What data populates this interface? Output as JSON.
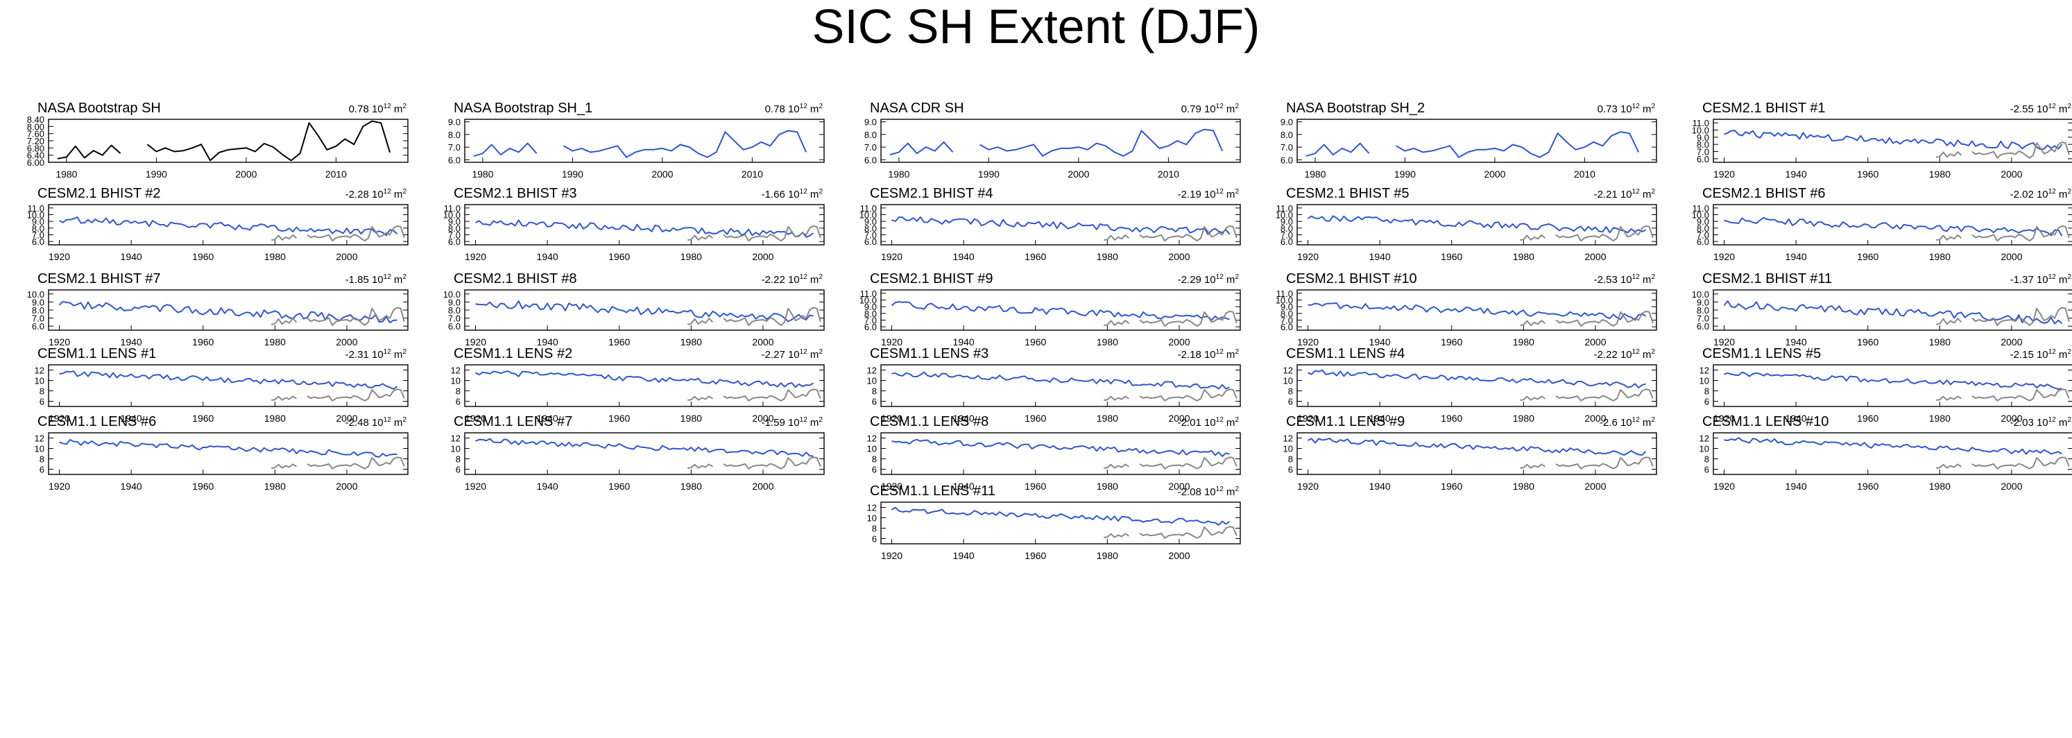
{
  "figure": {
    "title": "SIC SH Extent (DJF)"
  },
  "colors": {
    "model_line": "#3355cc",
    "obs_line": "#888888",
    "obs_main": "#000000",
    "axis": "#000000"
  },
  "chart_data": [
    {
      "type": "line",
      "title": "NASA Bootstrap SH",
      "trend": "0.78",
      "unit": "10^12 m^2",
      "x_range": [
        1978,
        2018
      ],
      "x_ticks": [
        1980,
        1990,
        2000,
        2010
      ],
      "ylim": [
        6.0,
        8.4
      ],
      "y_ticks": [
        "6.00",
        "6.40",
        "6.80",
        "7.20",
        "7.60",
        "8.00",
        "8.40"
      ],
      "series": [
        {
          "name": "NASA Bootstrap SH",
          "color": "#000000",
          "x": [
            1979,
            1980,
            1981,
            1982,
            1983,
            1984,
            1985,
            1986,
            1987,
            1988,
            1989,
            1990,
            1991,
            1992,
            1993,
            1994,
            1995,
            1996,
            1997,
            1998,
            1999,
            2000,
            2001,
            2002,
            2003,
            2004,
            2005,
            2006,
            2007,
            2008,
            2009,
            2010,
            2011,
            2012,
            2013,
            2014,
            2015,
            2016,
            2017
          ],
          "y": [
            6.2,
            6.3,
            6.9,
            6.25,
            6.65,
            6.4,
            6.95,
            6.5,
            null,
            null,
            7.0,
            6.6,
            6.8,
            6.6,
            6.65,
            6.8,
            7.0,
            6.1,
            6.55,
            6.7,
            6.75,
            6.8,
            6.6,
            7.05,
            6.85,
            6.45,
            6.1,
            6.5,
            8.2,
            7.5,
            6.7,
            6.9,
            7.3,
            7.0,
            8.0,
            8.3,
            8.2,
            6.55,
            null
          ]
        }
      ]
    },
    {
      "type": "line",
      "title": "NASA Bootstrap SH_1",
      "trend": "0.78",
      "unit": "10^12 m^2",
      "x_range": [
        1978,
        2018
      ],
      "x_ticks": [
        1980,
        1990,
        2000,
        2010
      ],
      "ylim": [
        5.8,
        9.2
      ],
      "y_ticks": [
        "6.0",
        "7.0",
        "8.0",
        "9.0"
      ],
      "series": [
        {
          "name": "NASA Bootstrap SH_1",
          "color": "#3355cc",
          "x": [
            1979,
            1980,
            1981,
            1982,
            1983,
            1984,
            1985,
            1986,
            1987,
            1988,
            1989,
            1990,
            1991,
            1992,
            1993,
            1994,
            1995,
            1996,
            1997,
            1998,
            1999,
            2000,
            2001,
            2002,
            2003,
            2004,
            2005,
            2006,
            2007,
            2008,
            2009,
            2010,
            2011,
            2012,
            2013,
            2014,
            2015,
            2016,
            2017
          ],
          "y": [
            6.3,
            6.5,
            7.2,
            6.4,
            6.9,
            6.6,
            7.3,
            6.5,
            null,
            null,
            7.1,
            6.7,
            6.9,
            6.6,
            6.7,
            6.9,
            7.1,
            6.2,
            6.6,
            6.8,
            6.8,
            6.9,
            6.7,
            7.2,
            7.0,
            6.5,
            6.2,
            6.6,
            8.2,
            7.5,
            6.8,
            7.0,
            7.4,
            7.1,
            8.0,
            8.3,
            8.2,
            6.6,
            null
          ]
        }
      ]
    },
    {
      "type": "line",
      "title": "NASA CDR SH",
      "trend": "0.79",
      "unit": "10^12 m^2",
      "x_range": [
        1978,
        2018
      ],
      "x_ticks": [
        1980,
        1990,
        2000,
        2010
      ],
      "ylim": [
        5.8,
        9.2
      ],
      "y_ticks": [
        "6.0",
        "7.0",
        "8.0",
        "9.0"
      ],
      "series": [
        {
          "name": "NASA CDR SH",
          "color": "#3355cc",
          "x": [
            1979,
            1980,
            1981,
            1982,
            1983,
            1984,
            1985,
            1986,
            1987,
            1988,
            1989,
            1990,
            1991,
            1992,
            1993,
            1994,
            1995,
            1996,
            1997,
            1998,
            1999,
            2000,
            2001,
            2002,
            2003,
            2004,
            2005,
            2006,
            2007,
            2008,
            2009,
            2010,
            2011,
            2012,
            2013,
            2014,
            2015,
            2016,
            2017
          ],
          "y": [
            6.4,
            6.6,
            7.3,
            6.5,
            7.0,
            6.7,
            7.4,
            6.6,
            null,
            null,
            7.2,
            6.8,
            7.0,
            6.7,
            6.8,
            7.0,
            7.2,
            6.3,
            6.7,
            6.9,
            6.9,
            7.0,
            6.8,
            7.3,
            7.1,
            6.6,
            6.3,
            6.7,
            8.3,
            7.6,
            6.9,
            7.1,
            7.5,
            7.2,
            8.1,
            8.4,
            8.3,
            6.7,
            null
          ]
        }
      ]
    },
    {
      "type": "line",
      "title": "NASA Bootstrap SH_2",
      "trend": "0.73",
      "unit": "10^12 m^2",
      "x_range": [
        1978,
        2018
      ],
      "x_ticks": [
        1980,
        1990,
        2000,
        2010
      ],
      "ylim": [
        5.8,
        9.2
      ],
      "y_ticks": [
        "6.0",
        "7.0",
        "8.0",
        "9.0"
      ],
      "series": [
        {
          "name": "NASA Bootstrap SH_2",
          "color": "#3355cc",
          "x": [
            1979,
            1980,
            1981,
            1982,
            1983,
            1984,
            1985,
            1986,
            1987,
            1988,
            1989,
            1990,
            1991,
            1992,
            1993,
            1994,
            1995,
            1996,
            1997,
            1998,
            1999,
            2000,
            2001,
            2002,
            2003,
            2004,
            2005,
            2006,
            2007,
            2008,
            2009,
            2010,
            2011,
            2012,
            2013,
            2014,
            2015,
            2016,
            2017
          ],
          "y": [
            6.3,
            6.5,
            7.2,
            6.4,
            6.9,
            6.6,
            7.3,
            6.5,
            null,
            null,
            7.1,
            6.7,
            6.9,
            6.6,
            6.7,
            6.9,
            7.1,
            6.2,
            6.6,
            6.8,
            6.8,
            6.9,
            6.7,
            7.2,
            7.0,
            6.5,
            6.2,
            6.6,
            8.1,
            7.4,
            6.8,
            7.0,
            7.4,
            7.1,
            7.9,
            8.2,
            8.1,
            6.6,
            null
          ]
        }
      ]
    },
    {
      "type": "line",
      "title": "CESM2.1 BHIST #1",
      "trend": "-2.55",
      "unit": "10^12 m^2",
      "x_range": [
        1917,
        2017
      ],
      "x_ticks": [
        1920,
        1940,
        1960,
        1980,
        2000
      ],
      "ylim": [
        5.5,
        11.5
      ],
      "y_ticks": [
        "6.0",
        "7.0",
        "8.0",
        "9.0",
        "10.0",
        "11.0"
      ],
      "series": []
    },
    {
      "type": "line",
      "title": "CESM2.1 BHIST #2",
      "trend": "-2.28",
      "unit": "10^12 m^2",
      "x_range": [
        1917,
        2017
      ],
      "x_ticks": [
        1920,
        1940,
        1960,
        1980,
        2000
      ],
      "ylim": [
        5.5,
        11.5
      ],
      "y_ticks": [
        "6.0",
        "7.0",
        "8.0",
        "9.0",
        "10.0",
        "11.0"
      ],
      "series": []
    },
    {
      "type": "line",
      "title": "CESM2.1 BHIST #3",
      "trend": "-1.66",
      "unit": "10^12 m^2",
      "x_range": [
        1917,
        2017
      ],
      "x_ticks": [
        1920,
        1940,
        1960,
        1980,
        2000
      ],
      "ylim": [
        5.5,
        11.5
      ],
      "y_ticks": [
        "6.0",
        "7.0",
        "8.0",
        "9.0",
        "10.0",
        "11.0"
      ],
      "series": []
    },
    {
      "type": "line",
      "title": "CESM2.1 BHIST #4",
      "trend": "-2.19",
      "unit": "10^12 m^2",
      "x_range": [
        1917,
        2017
      ],
      "x_ticks": [
        1920,
        1940,
        1960,
        1980,
        2000
      ],
      "ylim": [
        5.5,
        11.5
      ],
      "y_ticks": [
        "6.0",
        "7.0",
        "8.0",
        "9.0",
        "10.0",
        "11.0"
      ],
      "series": []
    },
    {
      "type": "line",
      "title": "CESM2.1 BHIST #5",
      "trend": "-2.21",
      "unit": "10^12 m^2",
      "x_range": [
        1917,
        2017
      ],
      "x_ticks": [
        1920,
        1940,
        1960,
        1980,
        2000
      ],
      "ylim": [
        5.5,
        11.5
      ],
      "y_ticks": [
        "6.0",
        "7.0",
        "8.0",
        "9.0",
        "10.0",
        "11.0"
      ],
      "series": []
    },
    {
      "type": "line",
      "title": "CESM2.1 BHIST #6",
      "trend": "-2.02",
      "unit": "10^12 m^2",
      "x_range": [
        1917,
        2017
      ],
      "x_ticks": [
        1920,
        1940,
        1960,
        1980,
        2000
      ],
      "ylim": [
        5.5,
        11.5
      ],
      "y_ticks": [
        "6.0",
        "7.0",
        "8.0",
        "9.0",
        "10.0",
        "11.0"
      ],
      "series": []
    },
    {
      "type": "line",
      "title": "CESM2.1 BHIST #7",
      "trend": "-1.85",
      "unit": "10^12 m^2",
      "x_range": [
        1917,
        2017
      ],
      "x_ticks": [
        1920,
        1940,
        1960,
        1980,
        2000
      ],
      "ylim": [
        5.5,
        10.5
      ],
      "y_ticks": [
        "6.0",
        "7.0",
        "8.0",
        "9.0",
        "10.0"
      ],
      "series": []
    },
    {
      "type": "line",
      "title": "CESM2.1 BHIST #8",
      "trend": "-2.22",
      "unit": "10^12 m^2",
      "x_range": [
        1917,
        2017
      ],
      "x_ticks": [
        1920,
        1940,
        1960,
        1980,
        2000
      ],
      "ylim": [
        5.5,
        10.5
      ],
      "y_ticks": [
        "6.0",
        "7.0",
        "8.0",
        "9.0",
        "10.0"
      ],
      "series": []
    },
    {
      "type": "line",
      "title": "CESM2.1 BHIST #9",
      "trend": "-2.29",
      "unit": "10^12 m^2",
      "x_range": [
        1917,
        2017
      ],
      "x_ticks": [
        1920,
        1940,
        1960,
        1980,
        2000
      ],
      "ylim": [
        5.5,
        11.5
      ],
      "y_ticks": [
        "6.0",
        "7.0",
        "8.0",
        "9.0",
        "10.0",
        "11.0"
      ],
      "series": []
    },
    {
      "type": "line",
      "title": "CESM2.1 BHIST #10",
      "trend": "-2.53",
      "unit": "10^12 m^2",
      "x_range": [
        1917,
        2017
      ],
      "x_ticks": [
        1920,
        1940,
        1960,
        1980,
        2000
      ],
      "ylim": [
        5.5,
        11.5
      ],
      "y_ticks": [
        "6.0",
        "7.0",
        "8.0",
        "9.0",
        "10.0",
        "11.0"
      ],
      "series": []
    },
    {
      "type": "line",
      "title": "CESM2.1 BHIST #11",
      "trend": "-1.37",
      "unit": "10^12 m^2",
      "x_range": [
        1917,
        2017
      ],
      "x_ticks": [
        1920,
        1940,
        1960,
        1980,
        2000
      ],
      "ylim": [
        5.5,
        10.5
      ],
      "y_ticks": [
        "6.0",
        "7.0",
        "8.0",
        "9.0",
        "10.0"
      ],
      "series": []
    },
    {
      "type": "line",
      "title": "CESM1.1 LENS #1",
      "trend": "-2.31",
      "unit": "10^12 m^2",
      "x_range": [
        1917,
        2017
      ],
      "x_ticks": [
        1920,
        1940,
        1960,
        1980,
        2000
      ],
      "ylim": [
        5,
        13
      ],
      "y_ticks": [
        "6",
        "8",
        "10",
        "12"
      ],
      "series": []
    },
    {
      "type": "line",
      "title": "CESM1.1 LENS #2",
      "trend": "-2.27",
      "unit": "10^12 m^2",
      "x_range": [
        1917,
        2017
      ],
      "x_ticks": [
        1920,
        1940,
        1960,
        1980,
        2000
      ],
      "ylim": [
        5,
        13
      ],
      "y_ticks": [
        "6",
        "8",
        "10",
        "12"
      ],
      "series": []
    },
    {
      "type": "line",
      "title": "CESM1.1 LENS #3",
      "trend": "-2.18",
      "unit": "10^12 m^2",
      "x_range": [
        1917,
        2017
      ],
      "x_ticks": [
        1920,
        1940,
        1960,
        1980,
        2000
      ],
      "ylim": [
        5,
        13
      ],
      "y_ticks": [
        "6",
        "8",
        "10",
        "12"
      ],
      "series": []
    },
    {
      "type": "line",
      "title": "CESM1.1 LENS #4",
      "trend": "-2.22",
      "unit": "10^12 m^2",
      "x_range": [
        1917,
        2017
      ],
      "x_ticks": [
        1920,
        1940,
        1960,
        1980,
        2000
      ],
      "ylim": [
        5,
        13
      ],
      "y_ticks": [
        "6",
        "8",
        "10",
        "12"
      ],
      "series": []
    },
    {
      "type": "line",
      "title": "CESM1.1 LENS #5",
      "trend": "-2.15",
      "unit": "10^12 m^2",
      "x_range": [
        1917,
        2017
      ],
      "x_ticks": [
        1920,
        1940,
        1960,
        1980,
        2000
      ],
      "ylim": [
        5,
        13
      ],
      "y_ticks": [
        "6",
        "8",
        "10",
        "12"
      ],
      "series": []
    },
    {
      "type": "line",
      "title": "CESM1.1 LENS #6",
      "trend": "-2.48",
      "unit": "10^12 m^2",
      "x_range": [
        1917,
        2017
      ],
      "x_ticks": [
        1920,
        1940,
        1960,
        1980,
        2000
      ],
      "ylim": [
        5,
        13
      ],
      "y_ticks": [
        "6",
        "8",
        "10",
        "12"
      ],
      "series": []
    },
    {
      "type": "line",
      "title": "CESM1.1 LENS #7",
      "trend": "-1.59",
      "unit": "10^12 m^2",
      "x_range": [
        1917,
        2017
      ],
      "x_ticks": [
        1920,
        1940,
        1960,
        1980,
        2000
      ],
      "ylim": [
        5,
        13
      ],
      "y_ticks": [
        "6",
        "8",
        "10",
        "12"
      ],
      "series": []
    },
    {
      "type": "line",
      "title": "CESM1.1 LENS #8",
      "trend": "-2.01",
      "unit": "10^12 m^2",
      "x_range": [
        1917,
        2017
      ],
      "x_ticks": [
        1920,
        1940,
        1960,
        1980,
        2000
      ],
      "ylim": [
        5,
        13
      ],
      "y_ticks": [
        "6",
        "8",
        "10",
        "12"
      ],
      "series": []
    },
    {
      "type": "line",
      "title": "CESM1.1 LENS #9",
      "trend": "-2.6",
      "unit": "10^12 m^2",
      "x_range": [
        1917,
        2017
      ],
      "x_ticks": [
        1920,
        1940,
        1960,
        1980,
        2000
      ],
      "ylim": [
        5,
        13
      ],
      "y_ticks": [
        "6",
        "8",
        "10",
        "12"
      ],
      "series": []
    },
    {
      "type": "line",
      "title": "CESM1.1 LENS #10",
      "trend": "-2.03",
      "unit": "10^12 m^2",
      "x_range": [
        1917,
        2017
      ],
      "x_ticks": [
        1920,
        1940,
        1960,
        1980,
        2000
      ],
      "ylim": [
        5,
        13
      ],
      "y_ticks": [
        "6",
        "8",
        "10",
        "12"
      ],
      "series": []
    },
    {
      "type": "line",
      "title": "CESM1.1 LENS #11",
      "trend": "-2.08",
      "unit": "10^12 m^2",
      "x_range": [
        1917,
        2017
      ],
      "x_ticks": [
        1920,
        1940,
        1960,
        1980,
        2000
      ],
      "ylim": [
        5,
        13
      ],
      "y_ticks": [
        "6",
        "8",
        "10",
        "12"
      ],
      "series": []
    }
  ]
}
